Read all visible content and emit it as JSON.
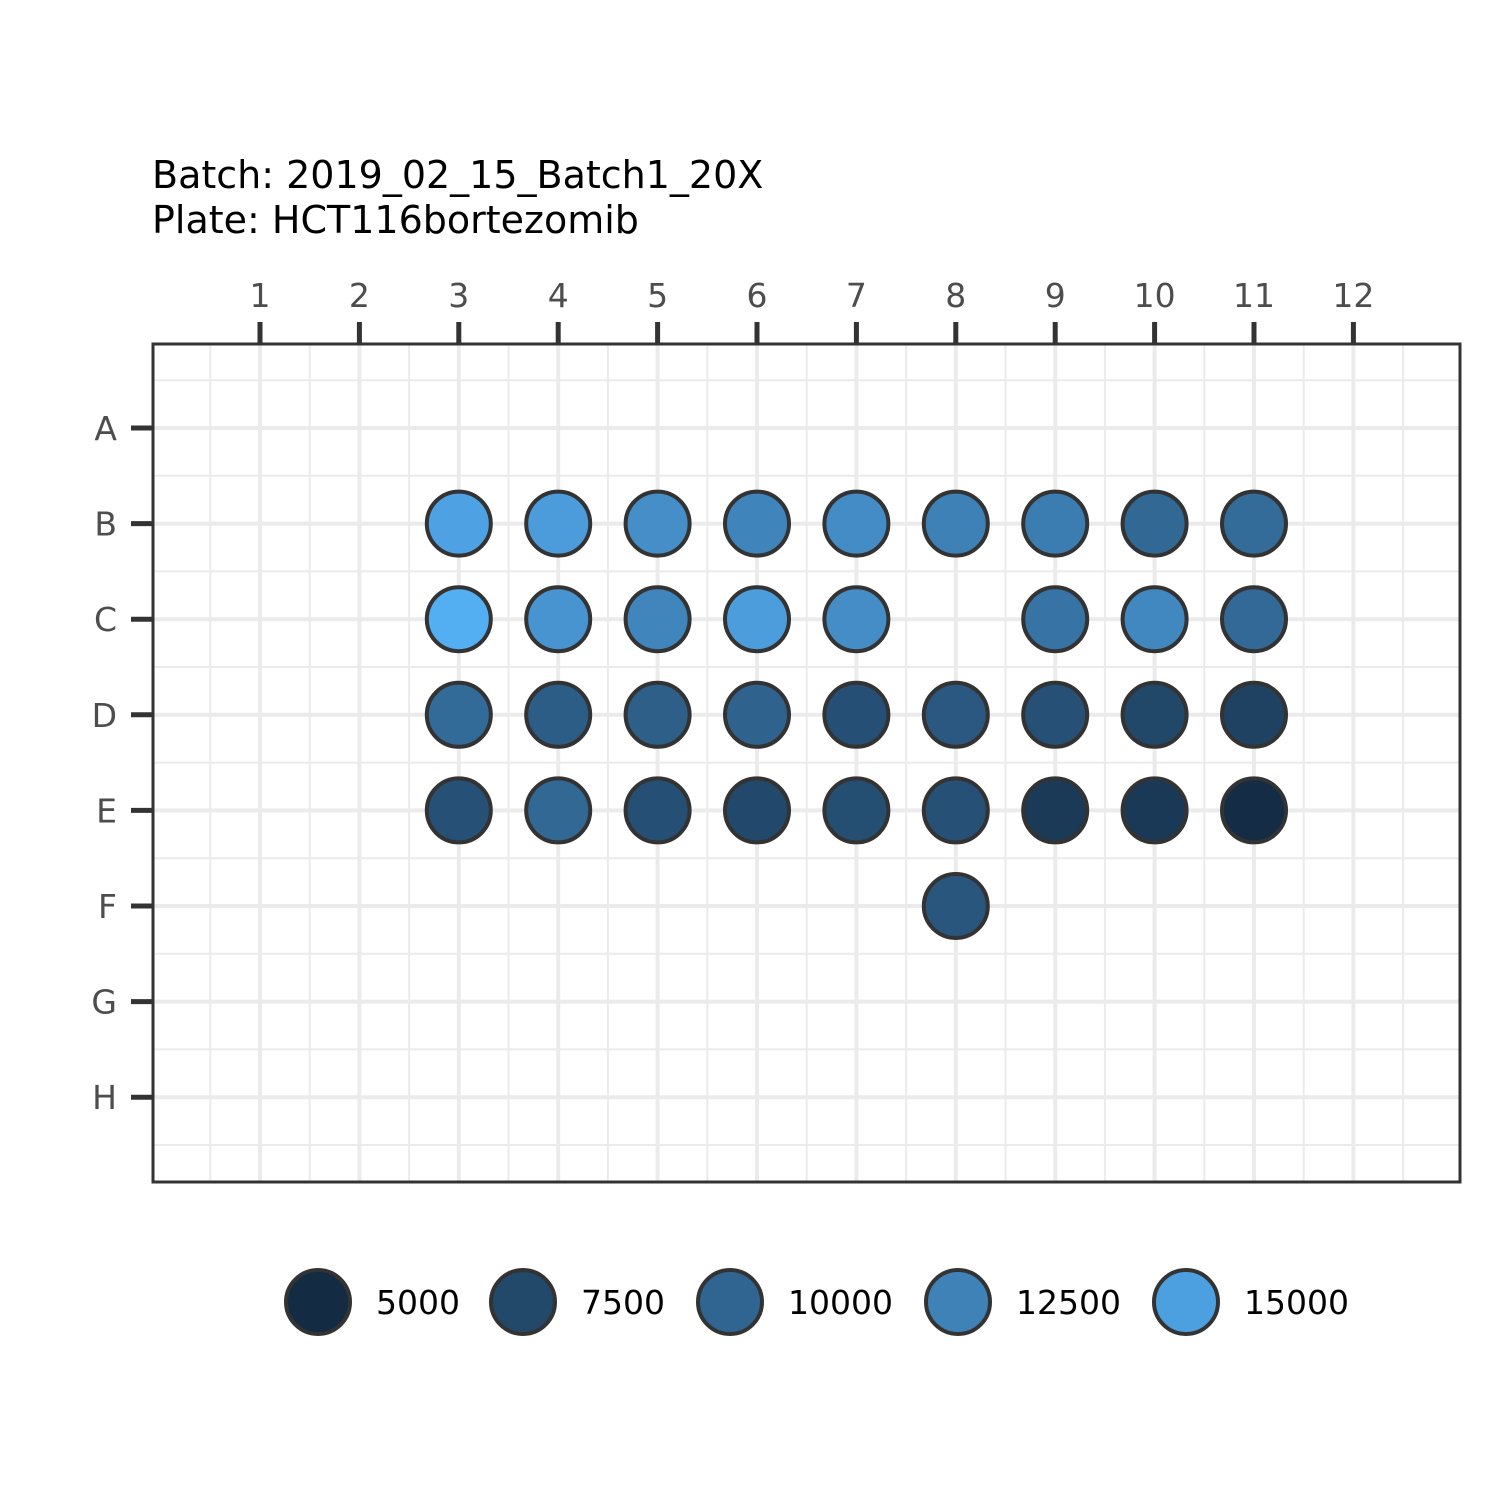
{
  "chart_data": {
    "type": "heatmap",
    "subtype": "plate-map",
    "title_lines": [
      "Batch: 2019_02_15_Batch1_20X",
      "Plate: HCT116bortezomib"
    ],
    "columns": [
      "1",
      "2",
      "3",
      "4",
      "5",
      "6",
      "7",
      "8",
      "9",
      "10",
      "11",
      "12"
    ],
    "rows": [
      "A",
      "B",
      "C",
      "D",
      "E",
      "F",
      "G",
      "H"
    ],
    "x_axis_position": "top",
    "grid": true,
    "wells": [
      {
        "row": "B",
        "col": 3,
        "value": 15200
      },
      {
        "row": "B",
        "col": 4,
        "value": 14700
      },
      {
        "row": "B",
        "col": 5,
        "value": 13500
      },
      {
        "row": "B",
        "col": 6,
        "value": 12600
      },
      {
        "row": "B",
        "col": 7,
        "value": 13300
      },
      {
        "row": "B",
        "col": 8,
        "value": 12400
      },
      {
        "row": "B",
        "col": 9,
        "value": 12000
      },
      {
        "row": "B",
        "col": 10,
        "value": 10200
      },
      {
        "row": "B",
        "col": 11,
        "value": 10500
      },
      {
        "row": "C",
        "col": 3,
        "value": 16200
      },
      {
        "row": "C",
        "col": 4,
        "value": 14000
      },
      {
        "row": "C",
        "col": 5,
        "value": 12700
      },
      {
        "row": "C",
        "col": 6,
        "value": 14800
      },
      {
        "row": "C",
        "col": 7,
        "value": 13400
      },
      {
        "row": "C",
        "col": 9,
        "value": 11200
      },
      {
        "row": "C",
        "col": 10,
        "value": 13000
      },
      {
        "row": "C",
        "col": 11,
        "value": 10300
      },
      {
        "row": "D",
        "col": 3,
        "value": 10400
      },
      {
        "row": "D",
        "col": 4,
        "value": 9300
      },
      {
        "row": "D",
        "col": 5,
        "value": 9500
      },
      {
        "row": "D",
        "col": 6,
        "value": 9800
      },
      {
        "row": "D",
        "col": 7,
        "value": 8100
      },
      {
        "row": "D",
        "col": 8,
        "value": 8900
      },
      {
        "row": "D",
        "col": 9,
        "value": 8200
      },
      {
        "row": "D",
        "col": 10,
        "value": 7400
      },
      {
        "row": "D",
        "col": 11,
        "value": 7000
      },
      {
        "row": "E",
        "col": 3,
        "value": 8200
      },
      {
        "row": "E",
        "col": 4,
        "value": 10200
      },
      {
        "row": "E",
        "col": 5,
        "value": 8100
      },
      {
        "row": "E",
        "col": 6,
        "value": 7600
      },
      {
        "row": "E",
        "col": 7,
        "value": 8000
      },
      {
        "row": "E",
        "col": 8,
        "value": 8200
      },
      {
        "row": "E",
        "col": 9,
        "value": 6300
      },
      {
        "row": "E",
        "col": 10,
        "value": 6200
      },
      {
        "row": "E",
        "col": 11,
        "value": 5100
      },
      {
        "row": "F",
        "col": 8,
        "value": 8700
      }
    ],
    "legend": {
      "position": "bottom",
      "values": [
        5000,
        7500,
        10000,
        12500,
        15000
      ]
    },
    "color_scale": {
      "domain": [
        5000,
        16500
      ],
      "low": "#132b43",
      "high": "#56b1f7"
    }
  }
}
